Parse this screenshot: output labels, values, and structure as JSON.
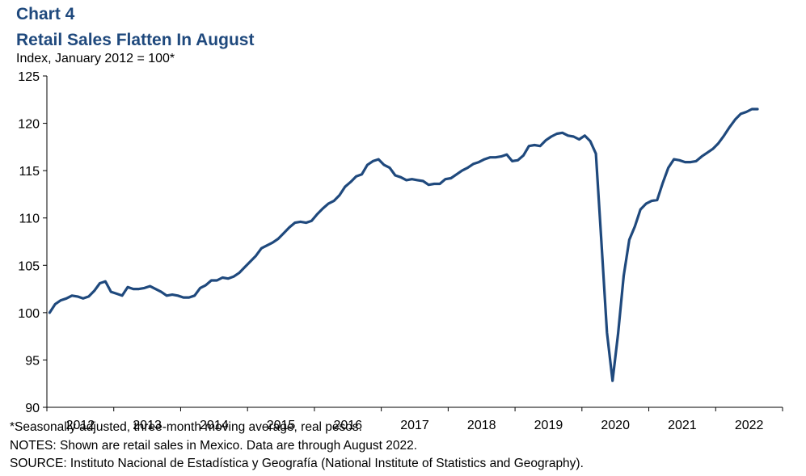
{
  "header": {
    "chart_number": "Chart 4",
    "title": "Retail Sales Flatten In August",
    "subtitle": "Index, January 2012 = 100*"
  },
  "notes": {
    "footnote": "*Seasonally adjusted, three-month moving average, real pesos.",
    "notes": "NOTES: Shown are retail sales in Mexico. Data are through August 2022.",
    "source": "SOURCE: Instituto Nacional de Estadística y Geografía (National Institute of Statistics and Geography)."
  },
  "colors": {
    "line": "#1f497d",
    "title": "#1f497d"
  },
  "chart_data": {
    "type": "line",
    "title": "Retail Sales Flatten In August",
    "ylabel": "Index, January 2012 = 100*",
    "xlabel": "",
    "ylim": [
      90,
      125
    ],
    "yticks": [
      90,
      95,
      100,
      105,
      110,
      115,
      120,
      125
    ],
    "xlim": [
      "2012-01",
      "2022-12"
    ],
    "x_tick_labels": [
      "2012",
      "2013",
      "2014",
      "2015",
      "2016",
      "2017",
      "2018",
      "2019",
      "2020",
      "2021",
      "2022"
    ],
    "grid": false,
    "legend": "none",
    "series": [
      {
        "values": [
          100.0,
          100.9,
          101.3,
          101.5,
          101.8,
          101.7,
          101.5,
          101.7,
          102.3,
          103.1,
          103.3,
          102.2,
          102.0,
          101.8,
          102.7,
          102.5,
          102.5,
          102.6,
          102.8,
          102.5,
          102.2,
          101.8,
          101.9,
          101.8,
          101.6,
          101.6,
          101.8,
          102.6,
          102.9,
          103.4,
          103.4,
          103.7,
          103.6,
          103.8,
          104.2,
          104.8,
          105.4,
          106.0,
          106.8,
          107.1,
          107.4,
          107.8,
          108.4,
          109.0,
          109.5,
          109.6,
          109.5,
          109.7,
          110.4,
          111.0,
          111.5,
          111.8,
          112.4,
          113.3,
          113.8,
          114.4,
          114.6,
          115.6,
          116.0,
          116.2,
          115.6,
          115.3,
          114.5,
          114.3,
          114.0,
          114.1,
          114.0,
          113.9,
          113.5,
          113.6,
          113.6,
          114.1,
          114.2,
          114.6,
          115.0,
          115.3,
          115.7,
          115.9,
          116.2,
          116.4,
          116.4,
          116.5,
          116.7,
          116.0,
          116.1,
          116.6,
          117.6,
          117.7,
          117.6,
          118.2,
          118.6,
          118.9,
          119.0,
          118.7,
          118.6,
          118.3,
          118.7,
          118.1,
          116.8,
          107.5,
          97.9,
          92.8,
          97.8,
          103.9,
          107.7,
          109.1,
          110.9,
          111.5,
          111.8,
          111.9,
          113.7,
          115.3,
          116.2,
          116.1,
          115.9,
          115.9,
          116.0,
          116.5,
          116.9,
          117.3,
          117.9,
          118.7,
          119.6,
          120.4,
          121.0,
          121.2,
          121.5,
          121.5
        ]
      }
    ]
  }
}
